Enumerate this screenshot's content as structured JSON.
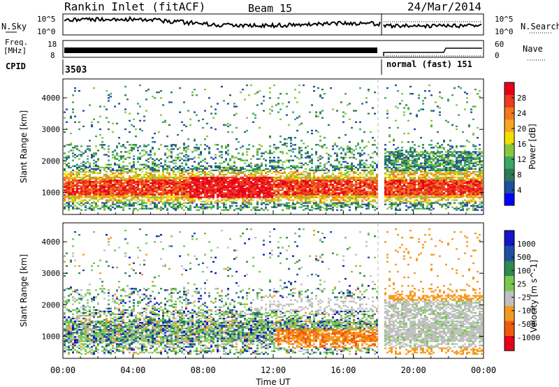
{
  "header": {
    "station": "Rankin Inlet (fitACF)",
    "beam": "Beam 15",
    "date": "24/Mar/2014"
  },
  "noise_panel": {
    "left_label": "N.Sky",
    "right_label": "N.Search",
    "left_ticks": [
      "10^5",
      "10^0"
    ],
    "right_ticks": [
      "10^5",
      "10^0"
    ]
  },
  "freq_panel": {
    "left_label_1": "Freq.",
    "left_label_2": "[MHz]",
    "right_label": "Nave",
    "left_ticks": [
      "18",
      "8"
    ],
    "right_ticks": [
      "60",
      "0"
    ]
  },
  "cpid": {
    "label": "CPID",
    "first": "3503",
    "second": "normal (fast) 151"
  },
  "colors": {
    "power": [
      "#0000ff",
      "#1f4fa0",
      "#2d7a55",
      "#3aa860",
      "#8cc63f",
      "#f0e000",
      "#f5a623",
      "#f07a20",
      "#ee3a20",
      "#e8001a"
    ],
    "velocity": [
      "#e8001a",
      "#f05a10",
      "#f59a20",
      "#c0c0c0",
      "#78c850",
      "#2d8a50",
      "#1f4fa0",
      "#1414c8"
    ]
  },
  "chart_data": [
    {
      "type": "heatmap",
      "name": "power",
      "ylabel": "Slant Range [km]",
      "yticks": [
        "1000",
        "2000",
        "3000",
        "4000"
      ],
      "ylim": [
        300,
        4600
      ],
      "colorbar_label": "Power [dB]",
      "colorbar_ticks": [
        "4",
        "8",
        "12",
        "16",
        "20",
        "24",
        "28"
      ],
      "colorbar_range": [
        0,
        32
      ]
    },
    {
      "type": "heatmap",
      "name": "velocity",
      "ylabel": "Slant Range [km]",
      "yticks": [
        "1000",
        "2000",
        "3000",
        "4000"
      ],
      "ylim": [
        300,
        4600
      ],
      "colorbar_label": "Velocity [m s^-1]",
      "colorbar_ticks": [
        "1000",
        "500",
        "100",
        "25",
        "-25",
        "-100",
        "-500",
        "-1000"
      ]
    }
  ],
  "x_axis": {
    "label": "Time UT",
    "ticks": [
      "00:00",
      "04:00",
      "08:00",
      "12:00",
      "16:00",
      "20:00",
      "00:00"
    ]
  }
}
